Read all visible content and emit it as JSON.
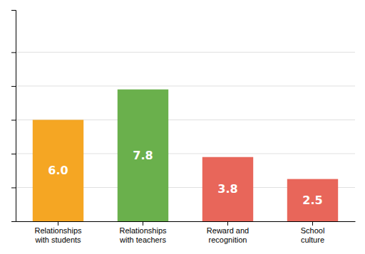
{
  "chart_data": {
    "type": "bar",
    "categories": [
      "Relationships\nwith students",
      "Relationships\nwith teachers",
      "Reward and\nrecognition",
      "School\nculture"
    ],
    "values": [
      6.0,
      7.8,
      3.8,
      2.5
    ],
    "value_labels": [
      "6.0",
      "7.8",
      "3.8",
      "2.5"
    ],
    "colors": [
      "#F5A623",
      "#6AB04C",
      "#E8665A",
      "#E8665A"
    ],
    "ylim": [
      0,
      12.5
    ],
    "yticks": [
      2,
      4,
      6,
      8,
      10
    ],
    "grid": true,
    "data_labels": true,
    "tick_labels": "x"
  }
}
